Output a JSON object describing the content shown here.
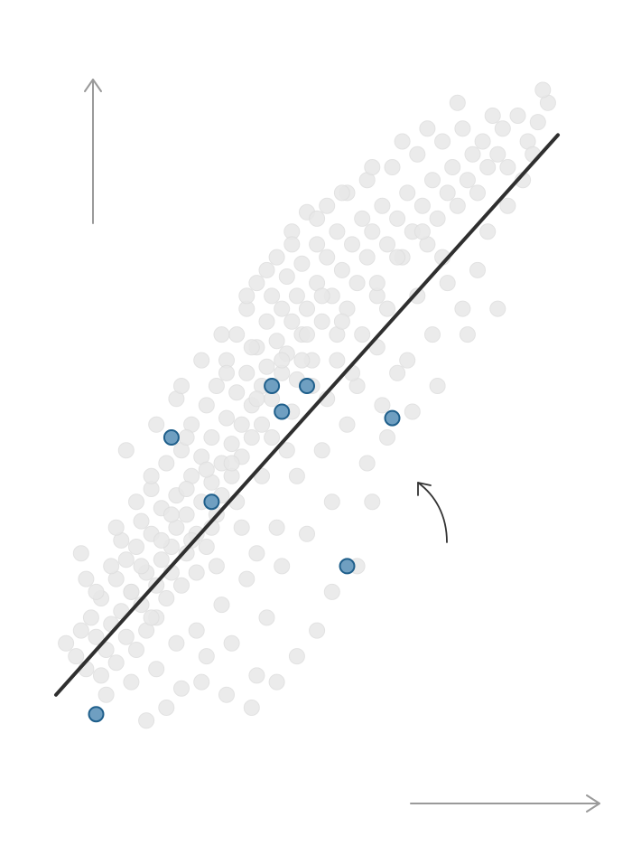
{
  "chart_data": {
    "type": "scatter",
    "title": "",
    "xlabel": "",
    "ylabel": "",
    "xlim": [
      0,
      100
    ],
    "ylim": [
      0,
      100
    ],
    "grid": false,
    "legend": "none",
    "colors": {
      "background_points": "#e8e8e8",
      "highlight_fill": "#6f9fc1",
      "highlight_stroke": "#1f5f8b",
      "fit_line": "#2f2f2f",
      "axis_arrows": "#9a9a9a"
    },
    "fit_line": {
      "x": [
        0,
        100
      ],
      "y": [
        10,
        97
      ]
    },
    "series": [
      {
        "role": "background",
        "points": [
          [
            2,
            18
          ],
          [
            4,
            16
          ],
          [
            5,
            20
          ],
          [
            6,
            14
          ],
          [
            7,
            22
          ],
          [
            8,
            19
          ],
          [
            9,
            13
          ],
          [
            9,
            25
          ],
          [
            10,
            17
          ],
          [
            11,
            21
          ],
          [
            12,
            15
          ],
          [
            12,
            28
          ],
          [
            13,
            23
          ],
          [
            14,
            19
          ],
          [
            14,
            31
          ],
          [
            15,
            26
          ],
          [
            16,
            17
          ],
          [
            16,
            33
          ],
          [
            17,
            24
          ],
          [
            17,
            37
          ],
          [
            18,
            20
          ],
          [
            18,
            29
          ],
          [
            19,
            35
          ],
          [
            19,
            42
          ],
          [
            20,
            27
          ],
          [
            20,
            22
          ],
          [
            21,
            31
          ],
          [
            21,
            39
          ],
          [
            22,
            25
          ],
          [
            22,
            46
          ],
          [
            23,
            33
          ],
          [
            23,
            29
          ],
          [
            24,
            41
          ],
          [
            24,
            36
          ],
          [
            25,
            27
          ],
          [
            25,
            48
          ],
          [
            26,
            38
          ],
          [
            26,
            32
          ],
          [
            27,
            44
          ],
          [
            27,
            52
          ],
          [
            28,
            35
          ],
          [
            28,
            29
          ],
          [
            29,
            47
          ],
          [
            29,
            40
          ],
          [
            30,
            55
          ],
          [
            30,
            33
          ],
          [
            31,
            43
          ],
          [
            31,
            50
          ],
          [
            32,
            38
          ],
          [
            32,
            58
          ],
          [
            33,
            46
          ],
          [
            33,
            41
          ],
          [
            34,
            53
          ],
          [
            34,
            62
          ],
          [
            35,
            49
          ],
          [
            35,
            44
          ],
          [
            36,
            57
          ],
          [
            36,
            66
          ],
          [
            37,
            52
          ],
          [
            37,
            47
          ],
          [
            38,
            60
          ],
          [
            38,
            70
          ],
          [
            39,
            55
          ],
          [
            39,
            50
          ],
          [
            40,
            64
          ],
          [
            40,
            74
          ],
          [
            41,
            58
          ],
          [
            41,
            52
          ],
          [
            42,
            68
          ],
          [
            42,
            61
          ],
          [
            43,
            72
          ],
          [
            43,
            56
          ],
          [
            44,
            65
          ],
          [
            44,
            78
          ],
          [
            45,
            60
          ],
          [
            45,
            70
          ],
          [
            46,
            75
          ],
          [
            46,
            63
          ],
          [
            47,
            68
          ],
          [
            47,
            82
          ],
          [
            48,
            72
          ],
          [
            48,
            59
          ],
          [
            49,
            77
          ],
          [
            49,
            66
          ],
          [
            50,
            70
          ],
          [
            50,
            85
          ],
          [
            51,
            62
          ],
          [
            52,
            74
          ],
          [
            52,
            80
          ],
          [
            53,
            68
          ],
          [
            54,
            78
          ],
          [
            54,
            86
          ],
          [
            55,
            72
          ],
          [
            56,
            82
          ],
          [
            56,
            66
          ],
          [
            57,
            76
          ],
          [
            58,
            88
          ],
          [
            58,
            70
          ],
          [
            59,
            80
          ],
          [
            60,
            74
          ],
          [
            61,
            84
          ],
          [
            62,
            78
          ],
          [
            62,
            90
          ],
          [
            63,
            82
          ],
          [
            64,
            72
          ],
          [
            65,
            86
          ],
          [
            66,
            80
          ],
          [
            67,
            92
          ],
          [
            68,
            84
          ],
          [
            69,
            78
          ],
          [
            70,
            88
          ],
          [
            71,
            82
          ],
          [
            72,
            94
          ],
          [
            73,
            86
          ],
          [
            74,
            80
          ],
          [
            75,
            90
          ],
          [
            76,
            84
          ],
          [
            77,
            96
          ],
          [
            78,
            88
          ],
          [
            79,
            92
          ],
          [
            80,
            86
          ],
          [
            81,
            98
          ],
          [
            82,
            90
          ],
          [
            83,
            94
          ],
          [
            84,
            88
          ],
          [
            85,
            96
          ],
          [
            86,
            92
          ],
          [
            87,
            100
          ],
          [
            88,
            94
          ],
          [
            89,
            98
          ],
          [
            90,
            92
          ],
          [
            92,
            100
          ],
          [
            94,
            96
          ],
          [
            96,
            99
          ],
          [
            98,
            102
          ],
          [
            97,
            104
          ],
          [
            10,
            10
          ],
          [
            15,
            12
          ],
          [
            20,
            14
          ],
          [
            25,
            11
          ],
          [
            30,
            16
          ],
          [
            35,
            18
          ],
          [
            40,
            13
          ],
          [
            28,
            20
          ],
          [
            22,
            8
          ],
          [
            18,
            6
          ],
          [
            33,
            24
          ],
          [
            38,
            28
          ],
          [
            42,
            22
          ],
          [
            45,
            30
          ],
          [
            50,
            35
          ],
          [
            55,
            40
          ],
          [
            48,
            44
          ],
          [
            53,
            48
          ],
          [
            58,
            52
          ],
          [
            60,
            58
          ],
          [
            62,
            46
          ],
          [
            65,
            55
          ],
          [
            44,
            36
          ],
          [
            40,
            32
          ],
          [
            36,
            40
          ],
          [
            30,
            45
          ],
          [
            26,
            50
          ],
          [
            24,
            56
          ],
          [
            34,
            60
          ],
          [
            39,
            64
          ],
          [
            43,
            50
          ],
          [
            47,
            54
          ],
          [
            51,
            58
          ],
          [
            56,
            62
          ],
          [
            61,
            66
          ],
          [
            66,
            70
          ],
          [
            70,
            62
          ],
          [
            72,
            72
          ],
          [
            75,
            66
          ],
          [
            78,
            74
          ],
          [
            68,
            60
          ],
          [
            64,
            64
          ],
          [
            57,
            68
          ],
          [
            53,
            72
          ],
          [
            49,
            62
          ],
          [
            46,
            48
          ],
          [
            41,
            44
          ],
          [
            37,
            36
          ],
          [
            32,
            30
          ],
          [
            27,
            34
          ],
          [
            23,
            38
          ],
          [
            19,
            44
          ],
          [
            16,
            40
          ],
          [
            13,
            34
          ],
          [
            11,
            30
          ],
          [
            8,
            26
          ],
          [
            6,
            28
          ],
          [
            5,
            32
          ],
          [
            14,
            48
          ],
          [
            20,
            52
          ],
          [
            25,
            58
          ],
          [
            29,
            62
          ],
          [
            33,
            66
          ],
          [
            38,
            72
          ],
          [
            42,
            76
          ],
          [
            47,
            80
          ],
          [
            52,
            84
          ],
          [
            57,
            88
          ],
          [
            63,
            92
          ],
          [
            69,
            96
          ],
          [
            74,
            98
          ],
          [
            80,
            102
          ],
          [
            84,
            76
          ],
          [
            88,
            70
          ],
          [
            82,
            66
          ],
          [
            76,
            58
          ],
          [
            71,
            54
          ],
          [
            66,
            50
          ],
          [
            63,
            40
          ],
          [
            60,
            30
          ],
          [
            55,
            26
          ],
          [
            52,
            20
          ],
          [
            48,
            16
          ],
          [
            44,
            12
          ],
          [
            39,
            8
          ],
          [
            34,
            10
          ],
          [
            29,
            12
          ],
          [
            24,
            18
          ],
          [
            19,
            22
          ],
          [
            15,
            26
          ],
          [
            12,
            36
          ],
          [
            17,
            30
          ],
          [
            21,
            34
          ],
          [
            26,
            42
          ],
          [
            31,
            36
          ],
          [
            35,
            46
          ],
          [
            40,
            56
          ],
          [
            45,
            62
          ],
          [
            50,
            66
          ],
          [
            54,
            56
          ],
          [
            59,
            60
          ],
          [
            64,
            74
          ],
          [
            68,
            78
          ],
          [
            73,
            82
          ],
          [
            77,
            78
          ],
          [
            81,
            70
          ],
          [
            86,
            82
          ],
          [
            90,
            86
          ],
          [
            93,
            90
          ],
          [
            95,
            94
          ]
        ]
      },
      {
        "role": "highlight",
        "points": [
          [
            8,
            7
          ],
          [
            23,
            50
          ],
          [
            31,
            40
          ],
          [
            43,
            58
          ],
          [
            45,
            54
          ],
          [
            50,
            58
          ],
          [
            58,
            30
          ],
          [
            67,
            53
          ]
        ]
      }
    ]
  }
}
